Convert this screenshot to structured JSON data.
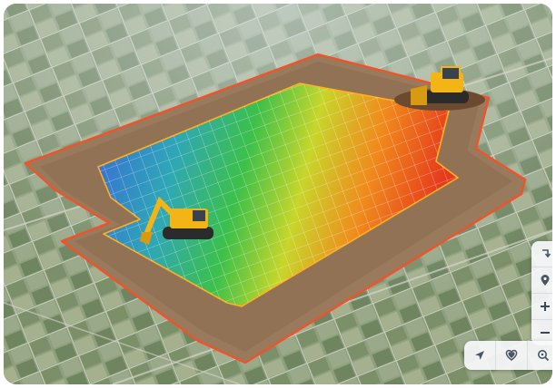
{
  "map": {
    "view": "aerial-3d",
    "heatmap_gradient": [
      "#3a66d8",
      "#2fa6b8",
      "#3cc04a",
      "#c7d62a",
      "#f08a1c",
      "#e63a1c"
    ],
    "site_boundary_color": "#f0532a",
    "equipment": [
      "excavator",
      "bulldozer"
    ]
  },
  "controls": {
    "side": [
      {
        "name": "rotate-icon"
      },
      {
        "name": "location-pin-icon"
      },
      {
        "name": "zoom-in-icon"
      },
      {
        "name": "zoom-out-icon"
      }
    ],
    "bottom": [
      {
        "name": "navigation-arrow-icon"
      },
      {
        "name": "heart-icon"
      },
      {
        "name": "search-location-icon"
      }
    ]
  }
}
